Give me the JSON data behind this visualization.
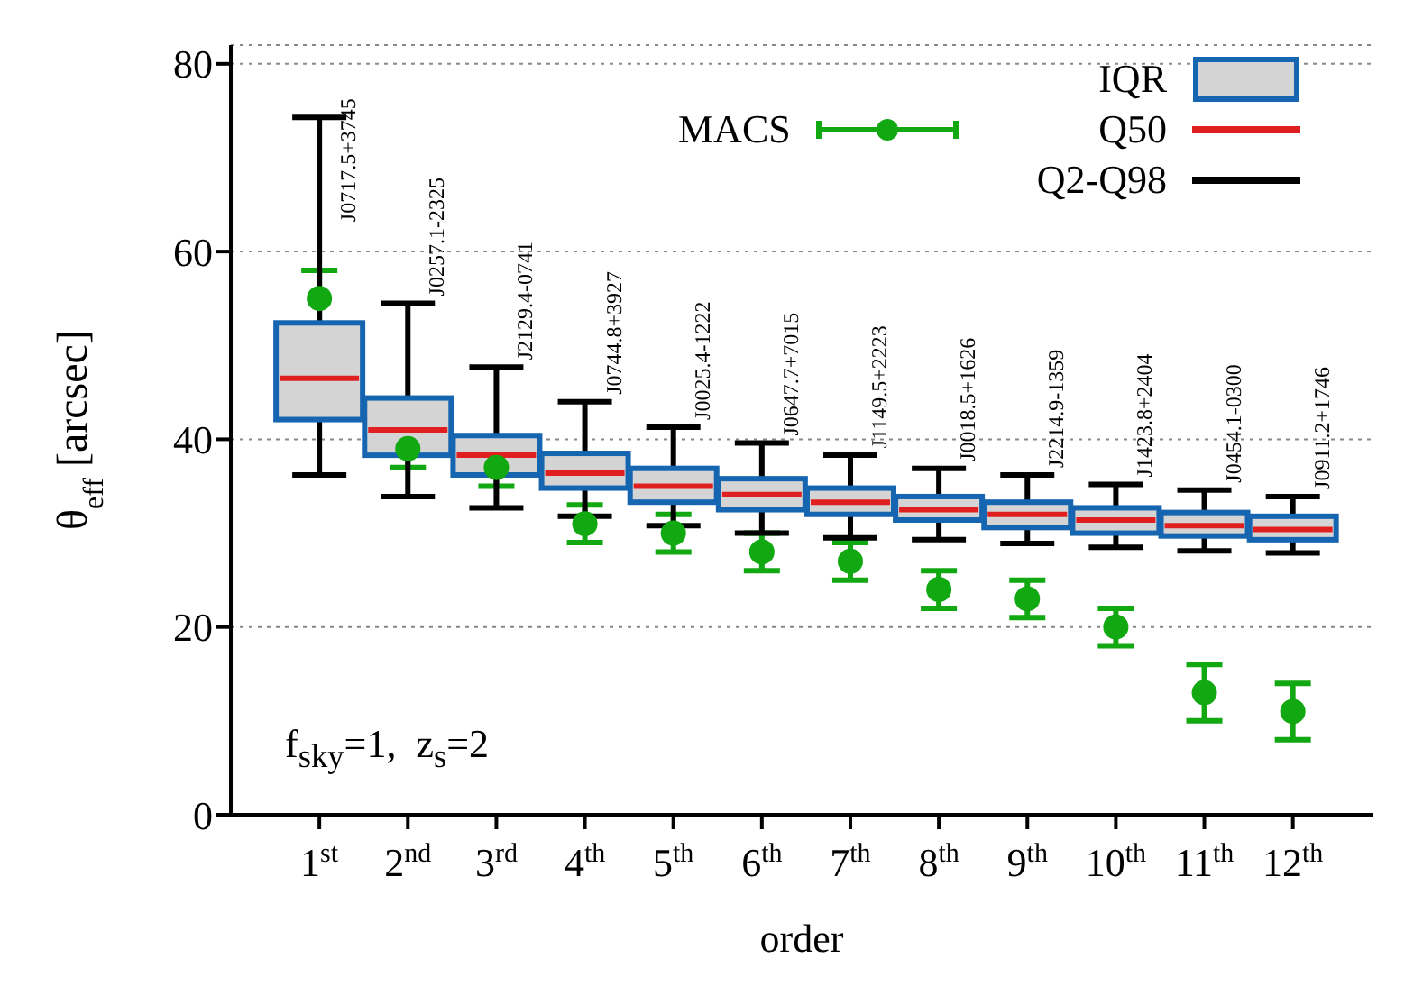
{
  "chart_data": {
    "type": "box",
    "xlabel": "order",
    "ylabel": "θ$_{eff}$ [arcsec]",
    "categories": [
      "1$^{st}$",
      "2$^{nd}$",
      "3$^{rd}$",
      "4$^{th}$",
      "5$^{th}$",
      "6$^{th}$",
      "7$^{th}$",
      "8$^{th}$",
      "9$^{th}$",
      "10$^{th}$",
      "11$^{th}$",
      "12$^{th}$"
    ],
    "ylim": [
      0,
      82
    ],
    "yticks": [
      0,
      20,
      40,
      60,
      80
    ],
    "grid": "y",
    "legend": "top right",
    "series": [
      {
        "name": "IQR",
        "color": "#d4d4d4",
        "boxes": [
          {
            "low": 36.2,
            "q1": 42.1,
            "median": 46.5,
            "q3": 52.4,
            "high": 74.3
          },
          {
            "low": 33.9,
            "q1": 38.3,
            "median": 41,
            "q3": 44.4,
            "high": 54.5
          },
          {
            "low": 32.7,
            "q1": 36.2,
            "median": 38.3,
            "q3": 40.4,
            "high": 47.7
          },
          {
            "low": 31.8,
            "q1": 34.8,
            "median": 36.4,
            "q3": 38.5,
            "high": 44
          },
          {
            "low": 30.8,
            "q1": 33.3,
            "median": 35,
            "q3": 36.9,
            "high": 41.3
          },
          {
            "low": 30,
            "q1": 32.5,
            "median": 34.1,
            "q3": 35.8,
            "high": 39.6
          },
          {
            "low": 29.5,
            "q1": 32,
            "median": 33.3,
            "q3": 34.8,
            "high": 38.3
          },
          {
            "low": 29.3,
            "q1": 31.4,
            "median": 32.5,
            "q3": 33.9,
            "high": 36.9
          },
          {
            "low": 28.9,
            "q1": 30.6,
            "median": 32,
            "q3": 33.3,
            "high": 36.2
          },
          {
            "low": 28.5,
            "q1": 30,
            "median": 31.4,
            "q3": 32.7,
            "high": 35.2
          },
          {
            "low": 28.1,
            "q1": 29.7,
            "median": 30.8,
            "q3": 32.2,
            "high": 34.6
          },
          {
            "low": 27.9,
            "q1": 29.3,
            "median": 30.4,
            "q3": 31.8,
            "high": 33.9
          }
        ]
      },
      {
        "type": "scatter",
        "name": "MACS",
        "color": "#11a811",
        "marker": "circle",
        "values": [
          55,
          39,
          37,
          31,
          30,
          28,
          27,
          24,
          23,
          20,
          13,
          11
        ],
        "errors": [
          [
            52,
            58
          ],
          [
            37,
            41
          ],
          [
            35,
            39
          ],
          [
            29,
            33
          ],
          [
            28,
            32
          ],
          [
            26,
            30
          ],
          [
            25,
            29
          ],
          [
            22,
            26
          ],
          [
            21,
            25
          ],
          [
            18,
            22
          ],
          [
            10,
            16
          ],
          [
            8,
            14
          ]
        ]
      }
    ],
    "annotations": [
      "Q50",
      "Q2-Q98",
      "f$_{sky}$=1,  z$_{s}$=2",
      "J0717.5+3745",
      "J0257.1-2325",
      "J2129.4-0741",
      "J0744.8+3927",
      "J0025.4-1222",
      "J0647.7+7015",
      "J1149.5+2223",
      "J0018.5+1626",
      "J2214.9-1359",
      "J1423.8+2404",
      "J0454.1-0300",
      "J0911.2+1746"
    ]
  }
}
